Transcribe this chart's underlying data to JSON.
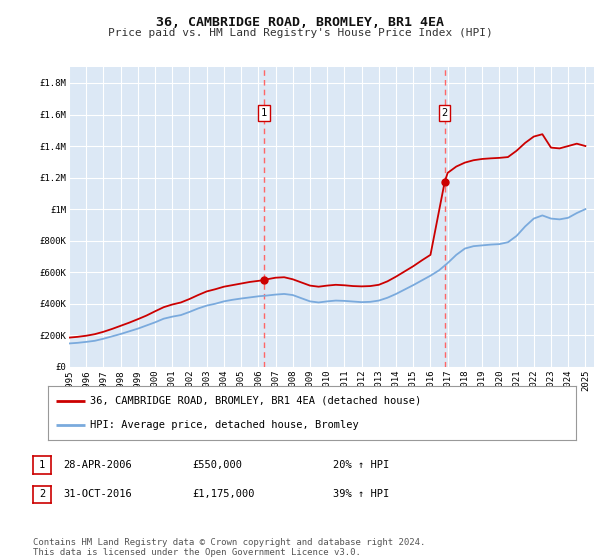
{
  "title": "36, CAMBRIDGE ROAD, BROMLEY, BR1 4EA",
  "subtitle": "Price paid vs. HM Land Registry's House Price Index (HPI)",
  "ytick_values": [
    0,
    200000,
    400000,
    600000,
    800000,
    1000000,
    1200000,
    1400000,
    1600000,
    1800000
  ],
  "ylim": [
    0,
    1900000
  ],
  "xlim": [
    1995,
    2025.5
  ],
  "background_color": "#ffffff",
  "plot_bg_color": "#dce8f5",
  "grid_color": "#ffffff",
  "sale1": {
    "date_label": "28-APR-2006",
    "price": 550000,
    "price_str": "£550,000",
    "pct": "20%",
    "x_year": 2006.32,
    "marker_y": 550000
  },
  "sale2": {
    "date_label": "31-OCT-2016",
    "price": 1175000,
    "price_str": "£1,175,000",
    "pct": "39%",
    "x_year": 2016.83,
    "marker_y": 1175000
  },
  "legend_line1": "36, CAMBRIDGE ROAD, BROMLEY, BR1 4EA (detached house)",
  "legend_line2": "HPI: Average price, detached house, Bromley",
  "footnote": "Contains HM Land Registry data © Crown copyright and database right 2024.\nThis data is licensed under the Open Government Licence v3.0.",
  "red_color": "#cc0000",
  "blue_color": "#7aaadd",
  "dashed_color": "#ff6666",
  "title_fontsize": 9.5,
  "subtitle_fontsize": 8,
  "tick_fontsize": 6.5,
  "legend_fontsize": 7.5,
  "ann_fontsize": 7.5,
  "footnote_fontsize": 6.5
}
